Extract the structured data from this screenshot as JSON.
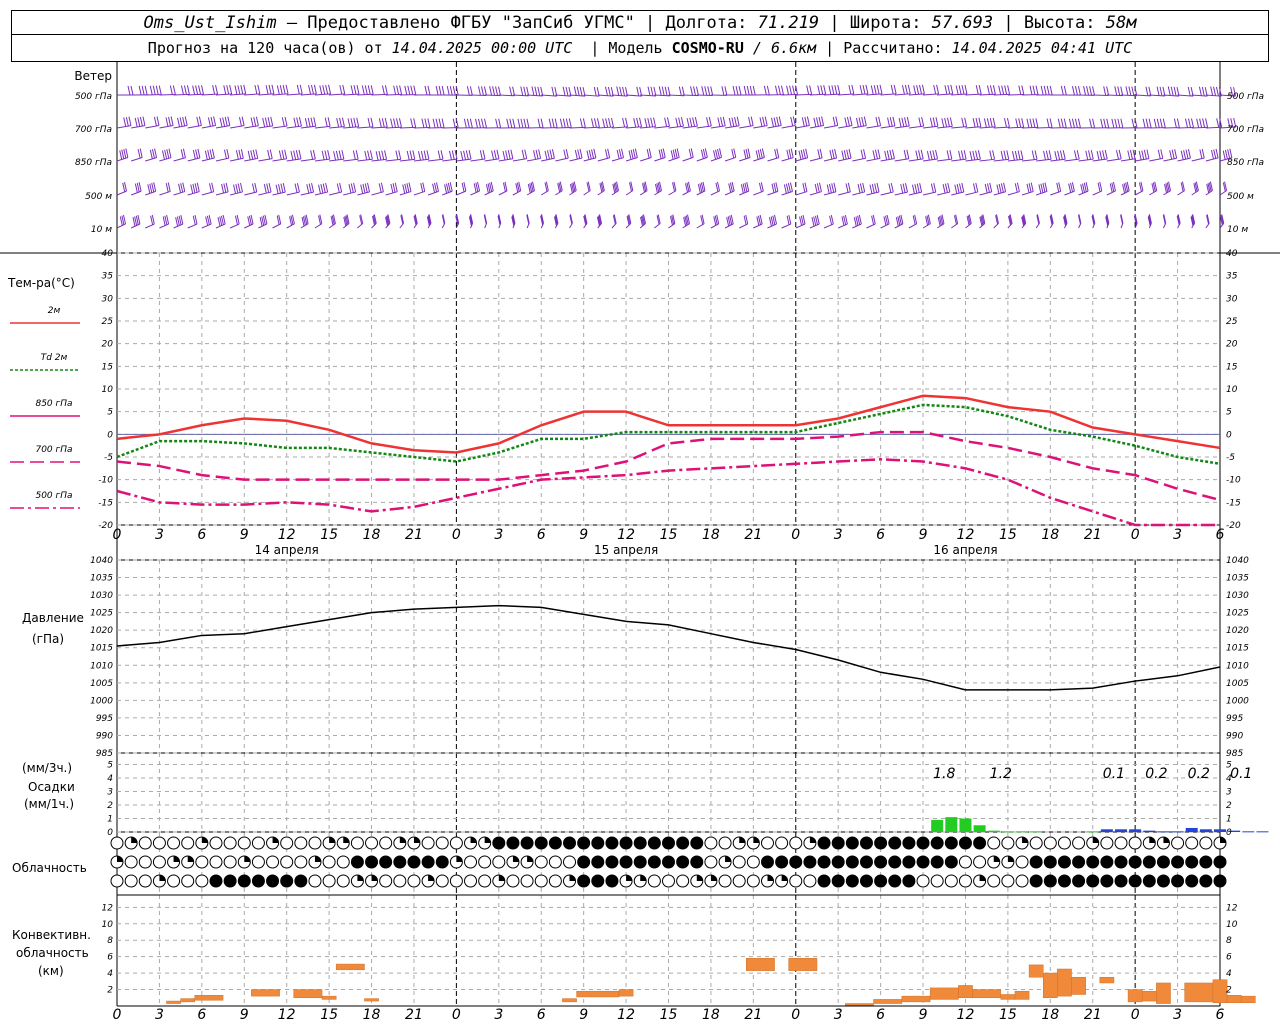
{
  "header": {
    "station": "Oms_Ust_Ishim",
    "provider": "– Предоставлено ФГБУ \"ЗапСиб УГМС\"",
    "lon_label": "Долгота:",
    "lon_value": "71.219",
    "lat_label": "Широта:",
    "lat_value": "57.693",
    "alt_label": "Высота:",
    "alt_value": "58м",
    "forecast_prefix": "Прогноз на 120 часа(ов) от",
    "forecast_start": "14.04.2025 00:00 UTC",
    "model_label": "Модель",
    "model_name": "COSMO-RU",
    "model_res": "/ 6.6км",
    "calc_label": "Рассчитано:",
    "calc_time": "14.04.2025 04:41 UTC"
  },
  "wind_panel": {
    "title": "Ветер",
    "levels": [
      "500 гПа",
      "700 гПа",
      "850 гПа",
      "500 м",
      "10  м"
    ],
    "color": "#7b2fbe"
  },
  "temp_panel": {
    "title": "Тем-ра(°С)",
    "legend": [
      {
        "label": "2м",
        "color": "#ee3333",
        "dash": "solid"
      },
      {
        "label": "Td  2м",
        "color": "#118811",
        "dash": "dotted"
      },
      {
        "label": "850 гПа",
        "color": "#dd1177",
        "dash": "solid"
      },
      {
        "label": "700 гПа",
        "color": "#dd1177",
        "dash": "dash"
      },
      {
        "label": "500 гПа",
        "color": "#dd1177",
        "dash": "dashdot"
      }
    ],
    "yticks": [
      40,
      35,
      30,
      25,
      20,
      15,
      10,
      5,
      0,
      -5,
      -10,
      -15,
      -20
    ]
  },
  "x_axis": {
    "hour_labels": [
      "0",
      "3",
      "6",
      "9",
      "12",
      "15",
      "18",
      "21",
      "0",
      "3",
      "6",
      "9",
      "12",
      "15",
      "18",
      "21",
      "0",
      "3",
      "6",
      "9",
      "12",
      "15",
      "18",
      "21",
      "0",
      "3",
      "6"
    ],
    "dates": [
      "14 апреля",
      "15 апреля",
      "16 апреля"
    ]
  },
  "pressure_panel": {
    "title": "Давление",
    "unit": "(гПа)",
    "yticks": [
      1040,
      1035,
      1030,
      1025,
      1020,
      1015,
      1010,
      1005,
      1000,
      995,
      990,
      985
    ]
  },
  "precip_panel": {
    "unit3": "(мм/3ч.)",
    "title": "Осадки",
    "unit1": "(мм/1ч.)",
    "yticks_top": [
      5,
      4,
      3,
      2,
      1
    ],
    "yticks_bottom": [
      5,
      4,
      3,
      2,
      1,
      0
    ],
    "annotations": [
      "1.8",
      "1.2",
      "0.1",
      "0.2",
      "0.2",
      "0.1"
    ]
  },
  "cloud_panel": {
    "title": "Облачность"
  },
  "conv_panel": {
    "title1": "Конвективн.",
    "title2": "облачность",
    "unit": "(км)",
    "yticks": [
      12,
      10,
      8,
      6,
      4,
      2,
      0
    ]
  },
  "chart_data": {
    "type": "line",
    "x_hours": [
      0,
      3,
      6,
      9,
      12,
      15,
      18,
      21,
      24,
      27,
      30,
      33,
      36,
      39,
      42,
      45,
      48,
      51,
      54,
      57,
      60,
      63,
      66,
      69,
      72,
      75,
      78
    ],
    "series": [
      {
        "name": "2м",
        "values": [
          -1,
          0,
          2,
          3.5,
          3,
          1,
          -2,
          -3.5,
          -4,
          -2,
          2,
          5,
          5,
          2,
          2,
          2,
          2,
          3.5,
          6,
          8.5,
          8,
          6,
          5,
          1.5,
          0,
          -1.5,
          -3
        ]
      },
      {
        "name": "Td  2м",
        "values": [
          -5,
          -1.5,
          -1.5,
          -2,
          -3,
          -3,
          -4,
          -5,
          -6,
          -4,
          -1,
          -1,
          0.5,
          0.5,
          0.5,
          0.5,
          0.5,
          2.5,
          4.5,
          6.5,
          6,
          4,
          1,
          -0.5,
          -2.5,
          -5,
          -6.5
        ]
      },
      {
        "name": "850 гПа",
        "values": [
          -6,
          -7,
          -9,
          -10,
          -10,
          -10,
          -10,
          -10,
          -10,
          -10,
          -9,
          -8,
          -6,
          -2,
          -1,
          -1,
          -1,
          -0.5,
          0.5,
          0.5,
          -1.5,
          -3,
          -5,
          -7.5,
          -9,
          -12,
          -14.5
        ]
      },
      {
        "name": "700 гПа",
        "values": [
          -12.5,
          -15,
          -15.5,
          -15.5,
          -15,
          -15.5,
          -17,
          -16,
          -14,
          -12,
          -10,
          -9.5,
          -9,
          -8,
          -7.5,
          -7,
          -6.5,
          -6,
          -5.5,
          -6,
          -7.5,
          -10,
          -14,
          -17,
          -20,
          -20,
          -20
        ]
      },
      {
        "name": "Давление",
        "values": [
          1015.5,
          1016.5,
          1018.5,
          1019,
          1021,
          1023,
          1025,
          1026,
          1026.5,
          1027,
          1026.5,
          1024.5,
          1022.5,
          1021.5,
          1019,
          1016.5,
          1014.5,
          1011.5,
          1008,
          1006,
          1003,
          1003,
          1003,
          1003.5,
          1005.5,
          1007,
          1009.5
        ]
      },
      {
        "name": "Осадки (мм/1ч.)",
        "values": [
          0,
          0,
          0,
          0,
          0,
          0,
          0,
          0,
          0,
          0,
          0,
          0,
          0,
          0,
          0,
          0,
          0,
          0,
          0,
          0.4,
          1.0,
          0.2,
          0.05,
          0.1,
          0.2,
          0.1,
          0.1
        ]
      }
    ],
    "precip_hourly": {
      "start_hour": 58,
      "values": [
        0.9,
        1.1,
        1.0,
        0.5,
        0.1,
        0.05,
        0.05,
        0.05,
        0,
        0,
        0,
        0.05,
        0.2,
        0.2,
        0.2,
        0.1,
        0.05,
        0.05,
        0.3,
        0.2,
        0.2,
        0.1,
        0.05,
        0.05
      ]
    },
    "conv_bars": [
      {
        "h0": 3.5,
        "h1": 4.5,
        "lo": 0.3,
        "hi": 0.6
      },
      {
        "h0": 4.5,
        "h1": 5.5,
        "lo": 0.5,
        "hi": 0.9
      },
      {
        "h0": 5.5,
        "h1": 7.5,
        "lo": 0.7,
        "hi": 1.3
      },
      {
        "h0": 9.5,
        "h1": 11.5,
        "lo": 1.2,
        "hi": 2.0
      },
      {
        "h0": 12.5,
        "h1": 14.5,
        "lo": 1.0,
        "hi": 2.0
      },
      {
        "h0": 14.5,
        "h1": 15.5,
        "lo": 0.8,
        "hi": 1.2
      },
      {
        "h0": 15.5,
        "h1": 17.5,
        "lo": 4.4,
        "hi": 5.1
      },
      {
        "h0": 17.5,
        "h1": 18.5,
        "lo": 0.6,
        "hi": 0.9
      },
      {
        "h0": 31.5,
        "h1": 32.5,
        "lo": 0.5,
        "hi": 0.9
      },
      {
        "h0": 32.5,
        "h1": 35.5,
        "lo": 1.1,
        "hi": 1.8
      },
      {
        "h0": 35.5,
        "h1": 36.5,
        "lo": 1.2,
        "hi": 2.0
      },
      {
        "h0": 44.5,
        "h1": 46.5,
        "lo": 4.3,
        "hi": 5.8
      },
      {
        "h0": 47.5,
        "h1": 49.5,
        "lo": 4.3,
        "hi": 5.8
      },
      {
        "h0": 51.5,
        "h1": 53.5,
        "lo": 0.1,
        "hi": 0.3
      },
      {
        "h0": 53.5,
        "h1": 55.5,
        "lo": 0.3,
        "hi": 0.8
      },
      {
        "h0": 55.5,
        "h1": 57.5,
        "lo": 0.5,
        "hi": 1.2
      },
      {
        "h0": 57.5,
        "h1": 59.5,
        "lo": 0.8,
        "hi": 2.2
      },
      {
        "h0": 59.5,
        "h1": 60.5,
        "lo": 1.0,
        "hi": 2.5
      },
      {
        "h0": 60.5,
        "h1": 62.5,
        "lo": 1.0,
        "hi": 2.0
      },
      {
        "h0": 62.5,
        "h1": 63.5,
        "lo": 0.8,
        "hi": 1.4
      },
      {
        "h0": 63.5,
        "h1": 64.5,
        "lo": 0.8,
        "hi": 1.8
      },
      {
        "h0": 64.5,
        "h1": 65.5,
        "lo": 3.5,
        "hi": 5.0
      },
      {
        "h0": 65.5,
        "h1": 66.5,
        "lo": 1.0,
        "hi": 4.0
      },
      {
        "h0": 66.5,
        "h1": 67.5,
        "lo": 1.2,
        "hi": 4.5
      },
      {
        "h0": 67.5,
        "h1": 68.5,
        "lo": 1.4,
        "hi": 3.5
      },
      {
        "h0": 69.5,
        "h1": 70.5,
        "lo": 2.8,
        "hi": 3.5
      },
      {
        "h0": 71.5,
        "h1": 72.5,
        "lo": 0.5,
        "hi": 2.0
      },
      {
        "h0": 72.5,
        "h1": 73.5,
        "lo": 0.6,
        "hi": 1.8
      },
      {
        "h0": 73.5,
        "h1": 74.5,
        "lo": 0.3,
        "hi": 2.8
      },
      {
        "h0": 75.5,
        "h1": 77.5,
        "lo": 0.5,
        "hi": 2.8
      },
      {
        "h0": 77.5,
        "h1": 78.5,
        "lo": 0.4,
        "hi": 3.2
      },
      {
        "h0": 78.5,
        "h1": 79.5,
        "lo": 0.4,
        "hi": 1.3
      },
      {
        "h0": 79.5,
        "h1": 80.5,
        "lo": 0.4,
        "hi": 1.2
      }
    ],
    "xlim": [
      0,
      78
    ],
    "grid": true
  }
}
